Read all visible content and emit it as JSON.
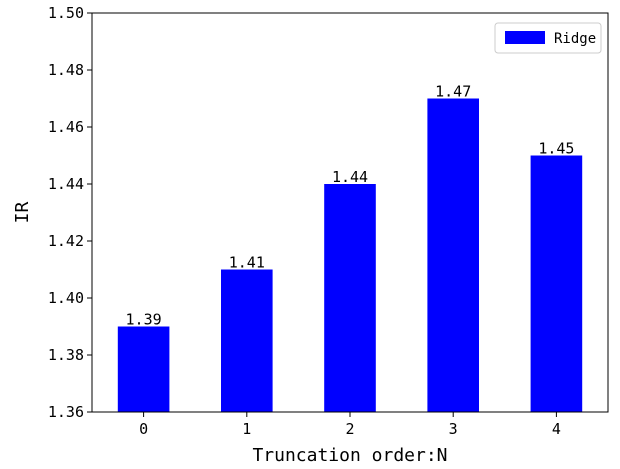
{
  "chart_data": {
    "type": "bar",
    "categories": [
      "0",
      "1",
      "2",
      "3",
      "4"
    ],
    "series": [
      {
        "name": "Ridge",
        "values": [
          1.39,
          1.41,
          1.44,
          1.47,
          1.45
        ],
        "color": "#0000ff"
      }
    ],
    "data_labels": [
      "1.39",
      "1.41",
      "1.44",
      "1.47",
      "1.45"
    ],
    "xlabel": "Truncation order:N",
    "ylabel": "IR",
    "ylim": [
      1.36,
      1.5
    ],
    "yticks": [
      1.36,
      1.38,
      1.4,
      1.42,
      1.44,
      1.46,
      1.48,
      1.5
    ],
    "ytick_labels": [
      "1.36",
      "1.38",
      "1.40",
      "1.42",
      "1.44",
      "1.46",
      "1.48",
      "1.50"
    ],
    "grid": false,
    "legend_position": "top-right"
  }
}
